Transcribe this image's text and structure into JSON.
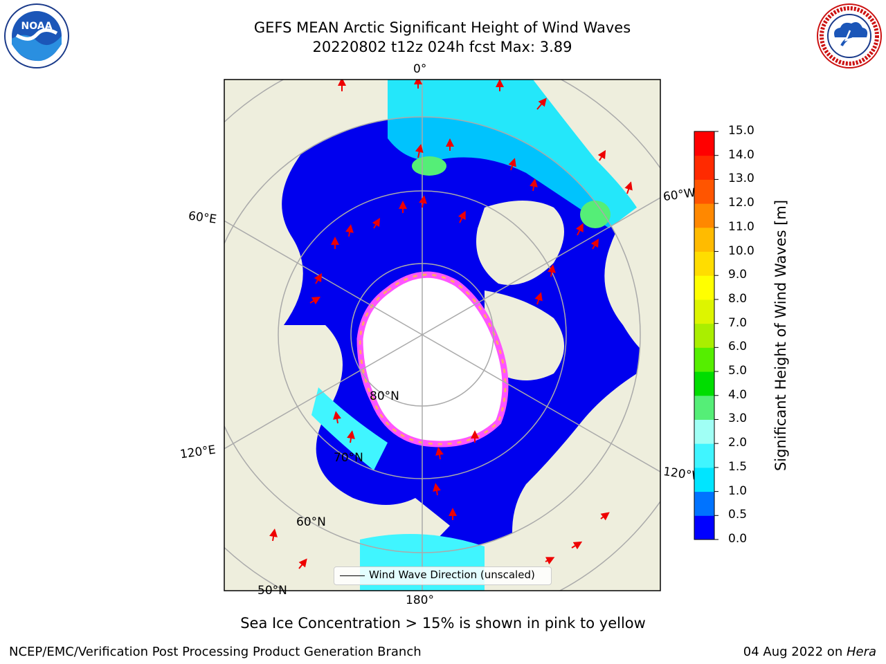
{
  "title": {
    "line1": "GEFS MEAN Arctic Significant Height of Wind Waves",
    "line2": "20220802 t12z 024h fcst   Max: 3.89"
  },
  "map": {
    "projection": "north-polar-stereographic",
    "longitude_labels": {
      "top": "0°",
      "bottom": "180°",
      "left_upper": "60°E",
      "left_lower": "120°E",
      "right_upper": "60°W",
      "right_lower": "120°W"
    },
    "latitude_labels": [
      "80°N",
      "70°N",
      "60°N",
      "50°N"
    ],
    "legend": "Wind Wave Direction (unscaled)",
    "colors": {
      "land": "#eeeedd",
      "ice_free_region": "#ffffff",
      "graticule": "#aaaaaa",
      "arrow": "#ee0000",
      "sea_ice": "#ff55ff"
    }
  },
  "colorbar": {
    "label": "Significant Height of Wind Waves [m]",
    "ticks": [
      "0.0",
      "0.5",
      "1.0",
      "1.5",
      "2.0",
      "3.0",
      "4.0",
      "5.0",
      "6.0",
      "7.0",
      "8.0",
      "9.0",
      "10.0",
      "11.0",
      "12.0",
      "13.0",
      "14.0",
      "15.0"
    ],
    "colors": [
      "#0000ff",
      "#0073ff",
      "#00e5ff",
      "#40f5ff",
      "#a0fff5",
      "#55ee77",
      "#00dd00",
      "#55ee00",
      "#aaee00",
      "#ddf500",
      "#ffff00",
      "#ffdd00",
      "#ffbb00",
      "#ff8800",
      "#ff5500",
      "#ff2a00",
      "#ff0000"
    ]
  },
  "caption": "Sea Ice Concentration > 15% is shown in pink to yellow",
  "footer": {
    "left": "NCEP/EMC/Verification Post Processing Product Generation Branch",
    "right_date": "04 Aug 2022 on ",
    "right_host": "Hera"
  },
  "logos": {
    "left": {
      "name": "NOAA",
      "text": "NOAA"
    },
    "right": {
      "name": "NATIONAL WEATHER SERVICE"
    }
  }
}
